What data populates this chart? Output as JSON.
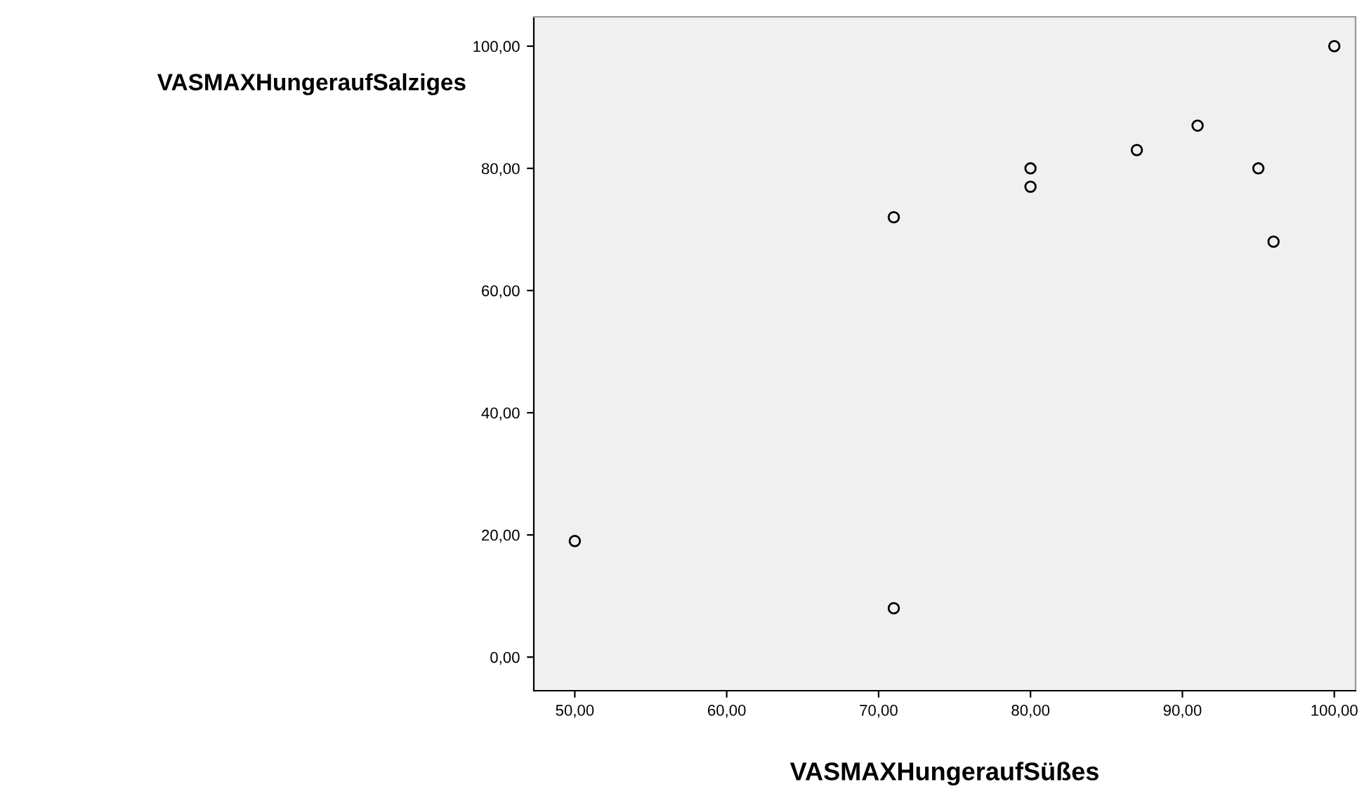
{
  "chart_data": {
    "type": "scatter",
    "xlabel": "VASMAXHungeraufSüßes",
    "ylabel": "VASMAXHungeraufSalziges",
    "x": [
      50,
      71,
      71,
      80,
      80,
      87,
      91,
      95,
      96,
      100
    ],
    "values": [
      19,
      72,
      8,
      80,
      77,
      83,
      87,
      80,
      68,
      100
    ],
    "color": "#000000",
    "marker": "circle",
    "xlim": [
      47.3,
      101.4
    ],
    "ylim": [
      -5.5,
      104.8
    ],
    "xticks": [
      {
        "value": 50,
        "label": "50,00"
      },
      {
        "value": 60,
        "label": "60,00"
      },
      {
        "value": 70,
        "label": "70,00"
      },
      {
        "value": 80,
        "label": "80,00"
      },
      {
        "value": 90,
        "label": "90,00"
      },
      {
        "value": 100,
        "label": "100,00"
      }
    ],
    "yticks": [
      {
        "value": 0,
        "label": "0,00"
      },
      {
        "value": 20,
        "label": "20,00"
      },
      {
        "value": 40,
        "label": "40,00"
      },
      {
        "value": 60,
        "label": "60,00"
      },
      {
        "value": 80,
        "label": "80,00"
      },
      {
        "value": 100,
        "label": "100,00"
      }
    ],
    "grid": false
  }
}
